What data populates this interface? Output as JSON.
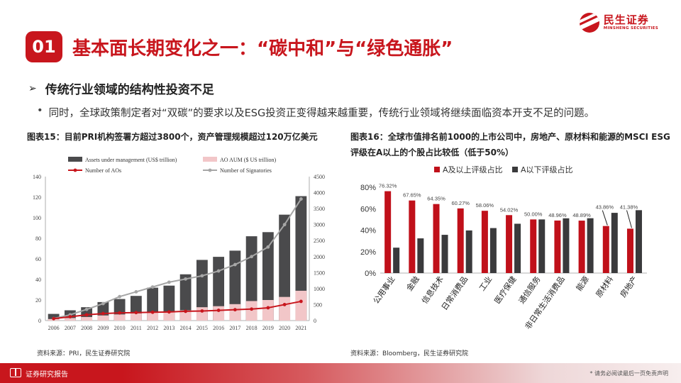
{
  "brand": {
    "cn": "民生证券",
    "en": "MINSHENG SECURITIES",
    "color": "#c8161d"
  },
  "header": {
    "badge": "01",
    "title": "基本面长期变化之一：“碳中和”与“绿色通胀”"
  },
  "bullets": {
    "heading": "传统行业领域的结构性投资不足",
    "body": "同时，全球政策制定者对“双碳”的要求以及ESG投资正变得越来越重要，传统行业领域将继续面临资本开支不足的问题。"
  },
  "figure_left": {
    "title": "图表15：目前PRI机构签署方超过3800个，资产管理规模超过120万亿美元",
    "source": "资料来源：PRI，民生证券研究院"
  },
  "figure_right": {
    "title": "图表16：全球市值排名前1000的上市公司中，房地产、原材料和能源的MSCI ESG评级在A以上的个股占比较低（低于50%）",
    "source": "资料来源：Bloomberg，民生证券研究院"
  },
  "footer": {
    "left": "证券研究报告",
    "right": "* 请务必阅读最后一页免责声明"
  },
  "chart_data": [
    {
      "type": "bar",
      "categories": [
        "2006",
        "2007",
        "2008",
        "2009",
        "2010",
        "2011",
        "2012",
        "2013",
        "2014",
        "2015",
        "2016",
        "2017",
        "2018",
        "2019",
        "2020",
        "2021"
      ],
      "series": [
        {
          "name": "Assets under management (US$ trillion)",
          "type": "bar",
          "axis": "left",
          "color": "#4a4a4c",
          "values": [
            6.5,
            10,
            13,
            18,
            21,
            24,
            32,
            34,
            45,
            59,
            62,
            68,
            82,
            86,
            103,
            121
          ]
        },
        {
          "name": "AO AUM ($ US trillion)",
          "type": "bar",
          "axis": "left",
          "color": "#f2c6c8",
          "values": [
            1.5,
            2.5,
            3.5,
            5,
            6,
            7,
            8,
            9,
            10,
            13,
            14,
            16,
            19,
            20,
            23,
            29
          ]
        },
        {
          "name": "Number of AOs",
          "type": "line",
          "axis": "right",
          "color": "#c8161d",
          "values": [
            60,
            120,
            180,
            220,
            240,
            250,
            260,
            270,
            290,
            300,
            320,
            340,
            360,
            400,
            500,
            600
          ]
        },
        {
          "name": "Number of Signatories",
          "type": "line",
          "axis": "right",
          "color": "#a6a6a6",
          "values": [
            63,
            180,
            350,
            530,
            750,
            900,
            1050,
            1200,
            1300,
            1400,
            1550,
            1750,
            2000,
            2300,
            3000,
            3800
          ]
        }
      ],
      "ylim_left": [
        0,
        140
      ],
      "yticks_left": [
        0,
        20,
        40,
        60,
        80,
        100,
        120,
        140
      ],
      "ylim_right": [
        0,
        4500
      ],
      "yticks_right": [
        0,
        500,
        1000,
        1500,
        2000,
        2500,
        3000,
        3500,
        4000,
        4500
      ],
      "legend": "top",
      "grid": false
    },
    {
      "type": "bar",
      "categories": [
        "公用事业",
        "金融",
        "信息技术",
        "日常消费品",
        "工业",
        "医疗保健",
        "通信服务",
        "非日常生活消费品",
        "能源",
        "原材料",
        "房地产"
      ],
      "series": [
        {
          "name": "A及以上评级占比",
          "color": "#c0101a",
          "values": [
            76.32,
            67.65,
            64.35,
            60.27,
            58.06,
            54.02,
            50.0,
            48.96,
            48.89,
            43.86,
            41.38
          ]
        },
        {
          "name": "A以下评级占比",
          "color": "#3a3a3c",
          "values": [
            23.68,
            32.35,
            35.65,
            39.73,
            41.94,
            45.98,
            50.0,
            51.04,
            51.11,
            56.14,
            58.62
          ]
        }
      ],
      "data_labels": [
        "76.32%",
        "67.65%",
        "64.35%",
        "60.27%",
        "58.06%",
        "54.02%",
        "50.00%",
        "48.96%",
        "48.89%",
        "43.86%",
        "41.38%"
      ],
      "ylim": [
        0,
        80
      ],
      "yticks": [
        "0%",
        "20%",
        "40%",
        "60%",
        "80%"
      ],
      "legend": "top",
      "grid": false
    }
  ]
}
